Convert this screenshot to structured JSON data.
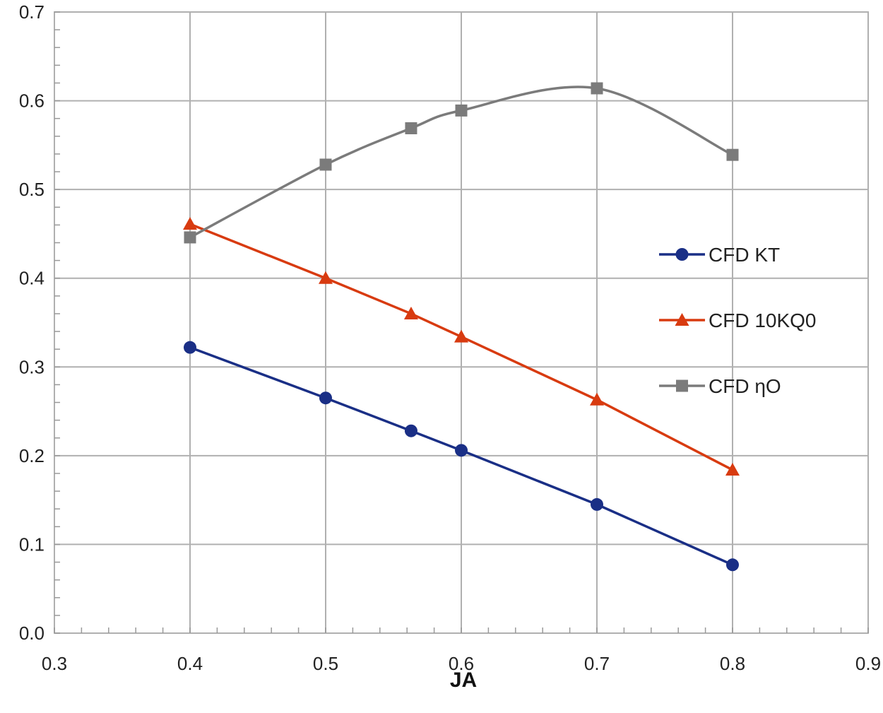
{
  "chart_data": {
    "type": "line",
    "title": "",
    "xlabel": "JA",
    "ylabel": "",
    "xlim": [
      0.3,
      0.9
    ],
    "ylim": [
      0.0,
      0.7
    ],
    "x_ticks": [
      0.3,
      0.4,
      0.5,
      0.6,
      0.7,
      0.8,
      0.9
    ],
    "x_tick_labels": [
      "0.3",
      "0.4",
      "0.5",
      "0.6",
      "0.7",
      "0.8",
      "0.9"
    ],
    "y_ticks": [
      0.0,
      0.1,
      0.2,
      0.3,
      0.4,
      0.5,
      0.6,
      0.7
    ],
    "y_tick_labels": [
      "0.0",
      "0.1",
      "0.2",
      "0.3",
      "0.4",
      "0.5",
      "0.6",
      "0.7"
    ],
    "grid": true,
    "legend_position": "right",
    "series": [
      {
        "name": "CFD KT",
        "color": "#1a2f86",
        "marker": "circle",
        "smooth": false,
        "x": [
          0.4,
          0.5,
          0.563,
          0.6,
          0.7,
          0.8
        ],
        "y": [
          0.322,
          0.265,
          0.228,
          0.206,
          0.145,
          0.077
        ]
      },
      {
        "name": "CFD 10KQ0",
        "color": "#d83b10",
        "marker": "triangle",
        "smooth": false,
        "x": [
          0.4,
          0.5,
          0.563,
          0.6,
          0.7,
          0.8
        ],
        "y": [
          0.461,
          0.4,
          0.36,
          0.334,
          0.263,
          0.184
        ]
      },
      {
        "name": "CFD ηO",
        "color": "#7b7b7b",
        "marker": "square",
        "smooth": true,
        "x": [
          0.4,
          0.5,
          0.563,
          0.6,
          0.7,
          0.8
        ],
        "y": [
          0.446,
          0.528,
          0.569,
          0.589,
          0.614,
          0.539
        ]
      }
    ]
  }
}
